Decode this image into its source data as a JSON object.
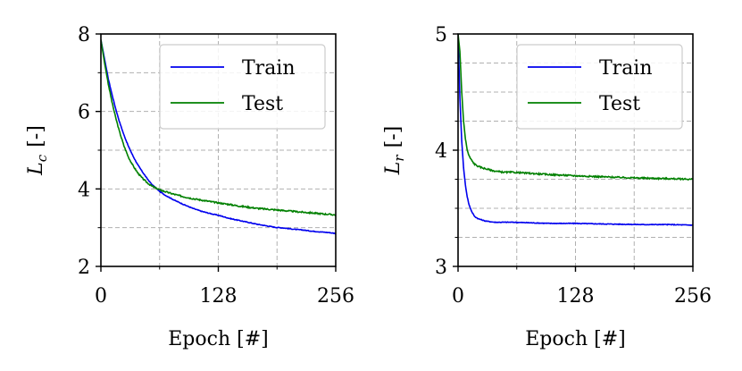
{
  "chart_data": [
    {
      "type": "line",
      "title": "",
      "xlabel": "Epoch [#]",
      "ylabel": "L_c [-]",
      "ylabel_main": "L",
      "ylabel_sub": "c",
      "ylabel_unit": "[-]",
      "xlim": [
        0,
        256
      ],
      "ylim": [
        2,
        8
      ],
      "xticks": [
        0,
        128,
        256
      ],
      "xtick_labels": [
        "0",
        "128",
        "256"
      ],
      "yticks": [
        2,
        4,
        6,
        8
      ],
      "ytick_labels": [
        "2",
        "4",
        "6",
        "8"
      ],
      "grid": true,
      "minor_x": [
        64,
        192
      ],
      "minor_y": [
        3,
        5,
        7
      ],
      "legend_position": "top-right",
      "series": [
        {
          "name": "Train",
          "color": "#0000ee",
          "x": [
            0,
            4,
            8,
            12,
            16,
            20,
            25,
            30,
            35,
            40,
            45,
            50,
            55,
            60,
            65,
            70,
            80,
            90,
            100,
            110,
            120,
            128,
            140,
            150,
            160,
            170,
            180,
            190,
            200,
            210,
            220,
            230,
            240,
            250,
            256
          ],
          "y": [
            7.85,
            7.35,
            6.85,
            6.45,
            6.08,
            5.75,
            5.4,
            5.1,
            4.85,
            4.63,
            4.45,
            4.28,
            4.13,
            4.02,
            3.92,
            3.84,
            3.71,
            3.6,
            3.5,
            3.42,
            3.36,
            3.32,
            3.24,
            3.19,
            3.14,
            3.09,
            3.05,
            3.01,
            2.99,
            2.96,
            2.94,
            2.91,
            2.89,
            2.87,
            2.85
          ]
        },
        {
          "name": "Test",
          "color": "#008000",
          "x": [
            0,
            4,
            8,
            12,
            16,
            20,
            25,
            30,
            35,
            40,
            45,
            50,
            55,
            60,
            65,
            70,
            80,
            90,
            100,
            110,
            120,
            128,
            140,
            150,
            160,
            170,
            180,
            190,
            200,
            210,
            220,
            230,
            240,
            250,
            256
          ],
          "y": [
            7.85,
            7.25,
            6.72,
            6.25,
            5.85,
            5.5,
            5.12,
            4.82,
            4.6,
            4.42,
            4.28,
            4.17,
            4.08,
            4.02,
            3.97,
            3.93,
            3.86,
            3.8,
            3.75,
            3.71,
            3.67,
            3.64,
            3.6,
            3.56,
            3.53,
            3.5,
            3.48,
            3.46,
            3.44,
            3.42,
            3.4,
            3.38,
            3.36,
            3.34,
            3.33
          ]
        }
      ]
    },
    {
      "type": "line",
      "title": "",
      "xlabel": "Epoch [#]",
      "ylabel": "L_r [-]",
      "ylabel_main": "L",
      "ylabel_sub": "r",
      "ylabel_unit": "[-]",
      "xlim": [
        0,
        256
      ],
      "ylim": [
        3,
        5
      ],
      "xticks": [
        0,
        128,
        256
      ],
      "xtick_labels": [
        "0",
        "128",
        "256"
      ],
      "yticks": [
        3,
        4,
        5
      ],
      "ytick_labels": [
        "3",
        "4",
        "5"
      ],
      "grid": true,
      "minor_x": [
        64,
        192
      ],
      "minor_y": [
        3.25,
        3.5,
        3.75,
        4.25,
        4.5,
        4.75
      ],
      "legend_position": "top-right",
      "series": [
        {
          "name": "Train",
          "color": "#0000ee",
          "x": [
            0,
            2,
            4,
            6,
            8,
            10,
            12,
            15,
            18,
            22,
            26,
            30,
            40,
            50,
            60,
            80,
            100,
            128,
            160,
            200,
            230,
            256
          ],
          "y": [
            5.0,
            4.45,
            4.08,
            3.85,
            3.7,
            3.6,
            3.53,
            3.47,
            3.43,
            3.41,
            3.4,
            3.39,
            3.38,
            3.38,
            3.38,
            3.375,
            3.37,
            3.37,
            3.365,
            3.36,
            3.36,
            3.355
          ]
        },
        {
          "name": "Test",
          "color": "#008000",
          "x": [
            0,
            2,
            4,
            6,
            8,
            10,
            12,
            15,
            18,
            22,
            26,
            30,
            40,
            50,
            60,
            80,
            100,
            128,
            160,
            200,
            230,
            256
          ],
          "y": [
            5.0,
            4.85,
            4.5,
            4.25,
            4.1,
            4.0,
            3.95,
            3.91,
            3.88,
            3.86,
            3.85,
            3.84,
            3.82,
            3.81,
            3.81,
            3.8,
            3.79,
            3.78,
            3.77,
            3.76,
            3.755,
            3.75
          ]
        }
      ]
    }
  ]
}
